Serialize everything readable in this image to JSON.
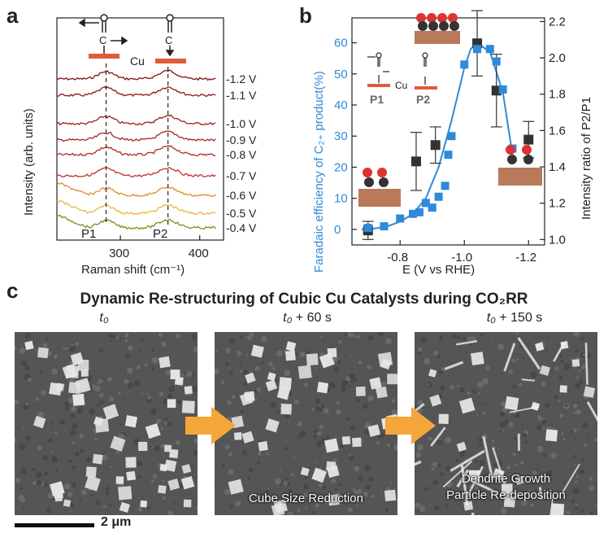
{
  "panels": {
    "a": "a",
    "b": "b",
    "c": "c"
  },
  "panel_a": {
    "cu_label": "Cu",
    "peak_labels": [
      "P1",
      "P2"
    ],
    "voltages": [
      "-1.2 V",
      "-1.1 V",
      "-1.0 V",
      "-0.9 V",
      "-0.8 V",
      "-0.7 V",
      "-0.6 V",
      "-0.5 V",
      "-0.4 V"
    ],
    "trace_colors": [
      "#7a1416",
      "#8a1a1a",
      "#9a1f1f",
      "#a82424",
      "#b52828",
      "#c22e2e",
      "#e08a2a",
      "#f0b43a",
      "#7f8a1f"
    ]
  },
  "panel_b": {
    "inset_labels": {
      "p1": "P1",
      "p2": "P2",
      "cu": "Cu"
    },
    "blue_color": "#2f8ad8",
    "black_color": "#333333"
  },
  "panel_c": {
    "title": "Dynamic Re-structuring of Cubic Cu Catalysts during CO₂RR",
    "times": [
      {
        "base": "t₀",
        "suffix": ""
      },
      {
        "base": "t₀",
        "suffix": " + 60 s"
      },
      {
        "base": "t₀",
        "suffix": " + 150 s"
      }
    ],
    "captions": [
      "",
      "Cube Size Reduction",
      "Dendrite Growth\nParticle Re-deposition"
    ],
    "scale_bar": "2 μm",
    "arrow_color": "#f4a63a"
  },
  "chart_data": [
    {
      "type": "line",
      "title": "",
      "xlabel": "Raman shift (cm⁻¹)",
      "ylabel": "Intensity (arb. units)",
      "xlim": [
        220,
        430
      ],
      "xticks": [
        300,
        400
      ],
      "peak_positions": [
        282,
        360
      ],
      "series": [
        {
          "name": "-1.2 V",
          "offset": 8
        },
        {
          "name": "-1.1 V",
          "offset": 7
        },
        {
          "name": "-1.0 V",
          "offset": 6
        },
        {
          "name": "-0.9 V",
          "offset": 5
        },
        {
          "name": "-0.8 V",
          "offset": 4
        },
        {
          "name": "-0.7 V",
          "offset": 3
        },
        {
          "name": "-0.6 V",
          "offset": 2
        },
        {
          "name": "-0.5 V",
          "offset": 1
        },
        {
          "name": "-0.4 V",
          "offset": 0
        }
      ]
    },
    {
      "type": "scatter",
      "title": "",
      "xlabel": "E (V vs RHE)",
      "ylabel": "Faradaic efficiency of C₂₊ product(%)",
      "ylabel_right": "Intensity ratio of P2/P1",
      "xlim": [
        -0.65,
        -1.25
      ],
      "ylim": [
        -5,
        68
      ],
      "ylim_right": [
        0.97,
        2.22
      ],
      "xticks": [
        "-0.8",
        "-1.0",
        "-1.2"
      ],
      "yticks": [
        0,
        10,
        20,
        30,
        40,
        50,
        60
      ],
      "yticks_right": [
        "1.0",
        "1.2",
        "1.4",
        "1.6",
        "1.8",
        "2.0",
        "2.2"
      ],
      "series": [
        {
          "name": "FE C2+",
          "axis": "left",
          "x": [
            -0.7,
            -0.75,
            -0.8,
            -0.84,
            -0.86,
            -0.88,
            -0.9,
            -0.92,
            -0.94,
            -0.95,
            -0.96,
            -1.0,
            -1.04,
            -1.08,
            -1.1,
            -1.12,
            -1.15
          ],
          "y": [
            0.5,
            1.0,
            3.5,
            5.0,
            5.5,
            8.5,
            7.0,
            10.5,
            14.0,
            24.0,
            30.0,
            53.0,
            58.0,
            58.0,
            54.0,
            45.0,
            26.0
          ],
          "fit_x": [
            -0.68,
            -0.72,
            -0.76,
            -0.8,
            -0.84,
            -0.88,
            -0.92,
            -0.96,
            -1.0,
            -1.02,
            -1.04,
            -1.08,
            -1.12,
            -1.15
          ],
          "fit_y": [
            0,
            0.3,
            1,
            2.5,
            5,
            10,
            20,
            35,
            52,
            58,
            60,
            57,
            44,
            24
          ]
        },
        {
          "name": "P2/P1",
          "axis": "right",
          "x": [
            -0.7,
            -0.85,
            -0.91,
            -1.04,
            -1.1,
            -1.2
          ],
          "y": [
            1.05,
            1.43,
            1.52,
            2.08,
            1.82,
            1.55
          ],
          "err": [
            0.05,
            0.16,
            0.1,
            0.18,
            0.2,
            0.1
          ]
        }
      ]
    }
  ]
}
